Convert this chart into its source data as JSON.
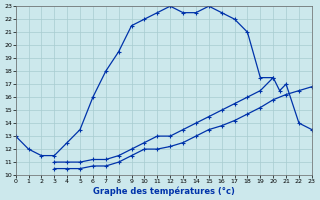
{
  "xlabel": "Graphe des températures (°c)",
  "bg_color": "#cce8ec",
  "line_color": "#0033aa",
  "grid_color": "#a8ccd0",
  "xlim": [
    0,
    23
  ],
  "ylim": [
    10,
    23
  ],
  "xticks": [
    0,
    1,
    2,
    3,
    4,
    5,
    6,
    7,
    8,
    9,
    10,
    11,
    12,
    13,
    14,
    15,
    16,
    17,
    18,
    19,
    20,
    21,
    22,
    23
  ],
  "yticks": [
    10,
    11,
    12,
    13,
    14,
    15,
    16,
    17,
    18,
    19,
    20,
    21,
    22,
    23
  ],
  "line1_x": [
    0,
    1,
    2,
    3,
    4,
    5,
    6,
    7,
    8,
    9,
    10,
    11,
    12,
    13,
    14,
    15,
    16,
    17,
    18,
    19,
    20
  ],
  "line1_y": [
    13.0,
    12.0,
    11.5,
    11.5,
    12.5,
    13.5,
    16.0,
    18.0,
    19.5,
    21.5,
    22.0,
    22.5,
    23.0,
    22.5,
    22.5,
    23.0,
    22.5,
    22.0,
    21.0,
    17.5,
    17.5
  ],
  "line2_x": [
    3,
    4,
    5,
    6,
    7,
    8,
    9,
    10,
    11,
    12,
    13,
    14,
    15,
    16,
    17,
    18,
    19,
    20,
    20.5,
    21,
    22,
    23
  ],
  "line2_y": [
    11.0,
    11.0,
    11.0,
    11.2,
    11.2,
    11.5,
    12.0,
    12.5,
    13.0,
    13.0,
    13.5,
    14.0,
    14.5,
    15.0,
    15.5,
    16.0,
    16.5,
    17.5,
    16.5,
    17.0,
    14.0,
    13.5
  ],
  "line3_x": [
    3,
    4,
    5,
    6,
    7,
    8,
    9,
    10,
    11,
    12,
    13,
    14,
    15,
    16,
    17,
    18,
    19,
    20,
    21,
    22,
    23
  ],
  "line3_y": [
    10.5,
    10.5,
    10.5,
    10.7,
    10.7,
    11.0,
    11.5,
    12.0,
    12.0,
    12.2,
    12.5,
    13.0,
    13.5,
    13.8,
    14.2,
    14.7,
    15.2,
    15.8,
    16.2,
    16.5,
    16.8
  ]
}
